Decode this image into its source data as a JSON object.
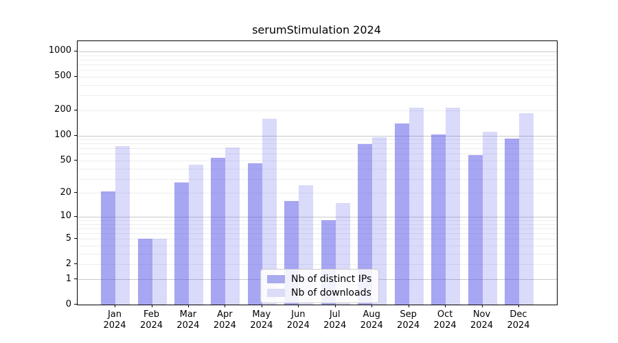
{
  "title": "serumStimulation 2024",
  "chart_data": {
    "type": "bar",
    "title": "serumStimulation 2024",
    "categories": [
      "Jan",
      "Feb",
      "Mar",
      "Apr",
      "May",
      "Jun",
      "Jul",
      "Aug",
      "Sep",
      "Oct",
      "Nov",
      "Dec"
    ],
    "year_label": "2024",
    "series": [
      {
        "name": "Nb of distinct IPs",
        "color": "rgba(85,85,230,0.52)",
        "legend_color": "#aaaaee",
        "values": [
          21,
          5,
          27,
          54,
          46,
          16,
          9,
          79,
          140,
          103,
          58,
          92
        ]
      },
      {
        "name": "Nb of downloads",
        "color": "rgba(85,85,230,0.22)",
        "legend_color": "#dcdcf8",
        "values": [
          74,
          5,
          45,
          72,
          158,
          25,
          15,
          95,
          216,
          216,
          112,
          185
        ]
      }
    ],
    "xlabel": "",
    "ylabel": "",
    "yscale": "log(1+x)",
    "yticks": [
      0,
      1,
      2,
      5,
      10,
      20,
      50,
      100,
      200,
      500,
      1000
    ],
    "major_gridline_values": [
      1,
      10,
      100,
      1000
    ],
    "ylim": [
      0,
      1320
    ],
    "grid": true,
    "legend_position": "lower center inside plot",
    "colors": {
      "axis": "#000000",
      "major_grid": "#c8c8c8",
      "minor_grid": "#ededed",
      "legend_border": "#cccccc"
    }
  }
}
